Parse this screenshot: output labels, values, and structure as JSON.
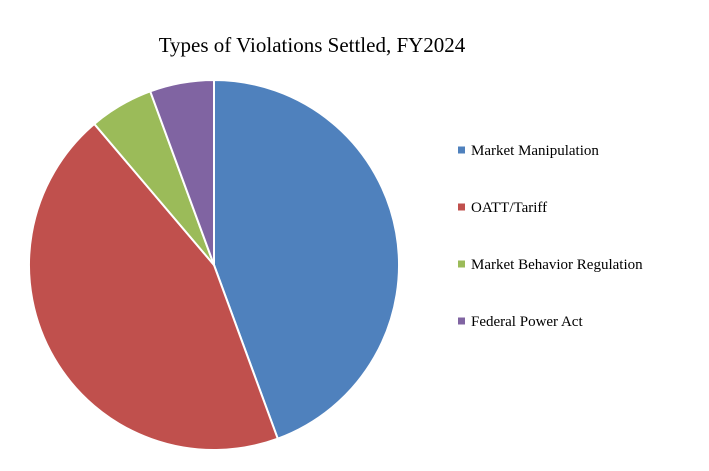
{
  "chart_data": {
    "type": "pie",
    "title": "Types of Violations Settled, FY2024",
    "legend_position": "right",
    "start_angle": "12 o'clock",
    "direction": "clockwise",
    "slices": [
      {
        "label": "Market Manipulation",
        "value": 44.4,
        "color": "#4f81bd"
      },
      {
        "label": "OATT/Tariff",
        "value": 44.4,
        "color": "#c0504d"
      },
      {
        "label": "Market Behavior Regulation",
        "value": 5.6,
        "color": "#9bbb59"
      },
      {
        "label": "Federal Power Act",
        "value": 5.6,
        "color": "#8064a2"
      }
    ]
  }
}
